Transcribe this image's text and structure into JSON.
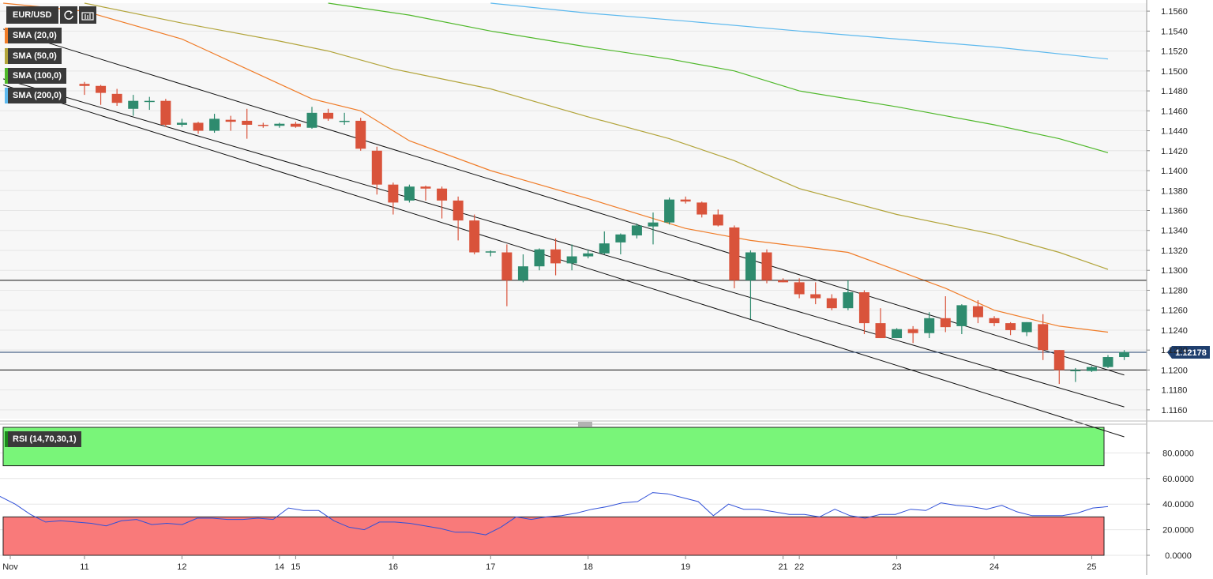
{
  "toolbar": {
    "pair": "EUR/USD",
    "refresh_icon": "refresh-icon",
    "bar_type_icon": "bar-chart-icon"
  },
  "indicators": [
    {
      "label": "SMA (20,0)",
      "color": "#f07c28"
    },
    {
      "label": "SMA (50,0)",
      "color": "#b2a43a"
    },
    {
      "label": "SMA (100,0)",
      "color": "#4fb82a"
    },
    {
      "label": "SMA (200,0)",
      "color": "#5db9ee"
    }
  ],
  "rsi_label": "RSI (14,70,30,1)",
  "current_price_label": "1.12178",
  "colors": {
    "up": "#2e8b6e",
    "down": "#d9533b",
    "overbought_zone": "#79f579",
    "oversold_zone": "#f97a7a",
    "rsi_line": "#3050d8",
    "channel": "#111111"
  },
  "chart_data": [
    {
      "type": "candlestick",
      "title": "EUR/USD",
      "y_axis": {
        "min": 1.1152,
        "max": 1.1568,
        "ticks": [
          "1.1160",
          "1.1180",
          "1.1200",
          "1.1220",
          "1.1240",
          "1.1260",
          "1.1280",
          "1.1300",
          "1.1320",
          "1.1340",
          "1.1360",
          "1.1380",
          "1.1400",
          "1.1420",
          "1.1440",
          "1.1460",
          "1.1480",
          "1.1500",
          "1.1520",
          "1.1540",
          "1.1560"
        ]
      },
      "x_axis": {
        "labels": [
          "Nov",
          "11",
          "12",
          "14",
          "15",
          "16",
          "17",
          "18",
          "19",
          "21",
          "22",
          "23",
          "24",
          "25"
        ],
        "label_bar_index": [
          -4,
          0,
          6,
          12,
          13,
          19,
          25,
          31,
          37,
          43,
          44,
          50,
          56,
          62
        ]
      },
      "x_range": [
        -5,
        64
      ],
      "candles": [
        {
          "o": 1.1487,
          "h": 1.1489,
          "l": 1.1476,
          "c": 1.1485
        },
        {
          "o": 1.1485,
          "h": 1.1486,
          "l": 1.1466,
          "c": 1.1478
        },
        {
          "o": 1.1477,
          "h": 1.1482,
          "l": 1.1465,
          "c": 1.1468
        },
        {
          "o": 1.1462,
          "h": 1.1476,
          "l": 1.1455,
          "c": 1.147
        },
        {
          "o": 1.147,
          "h": 1.1474,
          "l": 1.1461,
          "c": 1.147
        },
        {
          "o": 1.147,
          "h": 1.1472,
          "l": 1.1444,
          "c": 1.1446
        },
        {
          "o": 1.1446,
          "h": 1.1452,
          "l": 1.1444,
          "c": 1.1448
        },
        {
          "o": 1.1448,
          "h": 1.1449,
          "l": 1.1437,
          "c": 1.144
        },
        {
          "o": 1.144,
          "h": 1.1457,
          "l": 1.1438,
          "c": 1.1452
        },
        {
          "o": 1.1451,
          "h": 1.1455,
          "l": 1.144,
          "c": 1.1449
        },
        {
          "o": 1.145,
          "h": 1.1462,
          "l": 1.1432,
          "c": 1.1446
        },
        {
          "o": 1.1446,
          "h": 1.1448,
          "l": 1.1443,
          "c": 1.1445
        },
        {
          "o": 1.1445,
          "h": 1.1448,
          "l": 1.1443,
          "c": 1.1447
        },
        {
          "o": 1.1447,
          "h": 1.1449,
          "l": 1.1443,
          "c": 1.1444
        },
        {
          "o": 1.1443,
          "h": 1.1464,
          "l": 1.1442,
          "c": 1.1458
        },
        {
          "o": 1.1458,
          "h": 1.1462,
          "l": 1.145,
          "c": 1.1452
        },
        {
          "o": 1.145,
          "h": 1.1458,
          "l": 1.1446,
          "c": 1.145
        },
        {
          "o": 1.145,
          "h": 1.1453,
          "l": 1.142,
          "c": 1.1422
        },
        {
          "o": 1.142,
          "h": 1.1424,
          "l": 1.1376,
          "c": 1.1386
        },
        {
          "o": 1.1386,
          "h": 1.1388,
          "l": 1.1356,
          "c": 1.1368
        },
        {
          "o": 1.137,
          "h": 1.1386,
          "l": 1.1368,
          "c": 1.1384
        },
        {
          "o": 1.1384,
          "h": 1.1385,
          "l": 1.137,
          "c": 1.1382
        },
        {
          "o": 1.1382,
          "h": 1.1384,
          "l": 1.1352,
          "c": 1.137
        },
        {
          "o": 1.137,
          "h": 1.1374,
          "l": 1.133,
          "c": 1.135
        },
        {
          "o": 1.135,
          "h": 1.1356,
          "l": 1.1316,
          "c": 1.1318
        },
        {
          "o": 1.1318,
          "h": 1.132,
          "l": 1.1314,
          "c": 1.1319
        },
        {
          "o": 1.1318,
          "h": 1.1326,
          "l": 1.1264,
          "c": 1.129
        },
        {
          "o": 1.129,
          "h": 1.1316,
          "l": 1.1288,
          "c": 1.1304
        },
        {
          "o": 1.1304,
          "h": 1.1322,
          "l": 1.13,
          "c": 1.1321
        },
        {
          "o": 1.1321,
          "h": 1.1332,
          "l": 1.1295,
          "c": 1.1307
        },
        {
          "o": 1.1307,
          "h": 1.1326,
          "l": 1.13,
          "c": 1.1314
        },
        {
          "o": 1.1314,
          "h": 1.1321,
          "l": 1.1312,
          "c": 1.1317
        },
        {
          "o": 1.1317,
          "h": 1.1339,
          "l": 1.1316,
          "c": 1.1327
        },
        {
          "o": 1.1328,
          "h": 1.1337,
          "l": 1.1316,
          "c": 1.1336
        },
        {
          "o": 1.1335,
          "h": 1.1347,
          "l": 1.1332,
          "c": 1.1345
        },
        {
          "o": 1.1344,
          "h": 1.1358,
          "l": 1.1326,
          "c": 1.1348
        },
        {
          "o": 1.1348,
          "h": 1.1373,
          "l": 1.1346,
          "c": 1.1371
        },
        {
          "o": 1.1371,
          "h": 1.1374,
          "l": 1.1367,
          "c": 1.1369
        },
        {
          "o": 1.1368,
          "h": 1.1369,
          "l": 1.1353,
          "c": 1.1356
        },
        {
          "o": 1.1356,
          "h": 1.1361,
          "l": 1.1344,
          "c": 1.1345
        },
        {
          "o": 1.1343,
          "h": 1.1345,
          "l": 1.1282,
          "c": 1.129
        },
        {
          "o": 1.129,
          "h": 1.132,
          "l": 1.1251,
          "c": 1.1318
        },
        {
          "o": 1.1318,
          "h": 1.1321,
          "l": 1.1287,
          "c": 1.129
        },
        {
          "o": 1.129,
          "h": 1.1292,
          "l": 1.1288,
          "c": 1.1288
        },
        {
          "o": 1.1288,
          "h": 1.1292,
          "l": 1.1272,
          "c": 1.1276
        },
        {
          "o": 1.1276,
          "h": 1.1288,
          "l": 1.1266,
          "c": 1.1272
        },
        {
          "o": 1.1272,
          "h": 1.1276,
          "l": 1.126,
          "c": 1.1262
        },
        {
          "o": 1.1262,
          "h": 1.129,
          "l": 1.126,
          "c": 1.1278
        },
        {
          "o": 1.1278,
          "h": 1.128,
          "l": 1.1236,
          "c": 1.1247
        },
        {
          "o": 1.1247,
          "h": 1.1262,
          "l": 1.1232,
          "c": 1.1232
        },
        {
          "o": 1.1232,
          "h": 1.1242,
          "l": 1.1232,
          "c": 1.1241
        },
        {
          "o": 1.1241,
          "h": 1.1244,
          "l": 1.1227,
          "c": 1.1237
        },
        {
          "o": 1.1237,
          "h": 1.1258,
          "l": 1.1232,
          "c": 1.1252
        },
        {
          "o": 1.1252,
          "h": 1.1274,
          "l": 1.1238,
          "c": 1.1243
        },
        {
          "o": 1.1244,
          "h": 1.1266,
          "l": 1.1236,
          "c": 1.1265
        },
        {
          "o": 1.1264,
          "h": 1.127,
          "l": 1.1247,
          "c": 1.1253
        },
        {
          "o": 1.1252,
          "h": 1.1254,
          "l": 1.1244,
          "c": 1.1247
        },
        {
          "o": 1.1247,
          "h": 1.1248,
          "l": 1.1235,
          "c": 1.124
        },
        {
          "o": 1.1238,
          "h": 1.1248,
          "l": 1.1234,
          "c": 1.1248
        },
        {
          "o": 1.1246,
          "h": 1.1256,
          "l": 1.121,
          "c": 1.122
        },
        {
          "o": 1.122,
          "h": 1.122,
          "l": 1.1186,
          "c": 1.12
        },
        {
          "o": 1.1199,
          "h": 1.1202,
          "l": 1.1188,
          "c": 1.12
        },
        {
          "o": 1.1199,
          "h": 1.1204,
          "l": 1.1198,
          "c": 1.1203
        },
        {
          "o": 1.1203,
          "h": 1.1215,
          "l": 1.1202,
          "c": 1.1213
        },
        {
          "o": 1.1213,
          "h": 1.122,
          "l": 1.121,
          "c": 1.1218
        }
      ],
      "horizontal_lines": [
        1.129,
        1.12
      ],
      "current_price": 1.12178,
      "channel_lines": [
        {
          "x1": -5,
          "y1": 1.1542,
          "x2": 64,
          "y2": 1.1195
        },
        {
          "x1": -5,
          "y1": 1.1492,
          "x2": 64,
          "y2": 1.1163
        },
        {
          "x1": -5,
          "y1": 1.1486,
          "x2": 64,
          "y2": 1.1133
        }
      ],
      "sma": [
        {
          "name": "SMA (20,0)",
          "color": "#f07c28",
          "points": [
            [
              -5,
              1.1568
            ],
            [
              0,
              1.156
            ],
            [
              6,
              1.1532
            ],
            [
              10,
              1.1502
            ],
            [
              14,
              1.1472
            ],
            [
              17,
              1.146
            ],
            [
              20,
              1.143
            ],
            [
              25,
              1.14
            ],
            [
              31,
              1.1372
            ],
            [
              37,
              1.1342
            ],
            [
              41,
              1.133
            ],
            [
              44,
              1.1324
            ],
            [
              47,
              1.1318
            ],
            [
              50,
              1.13
            ],
            [
              53,
              1.1282
            ],
            [
              56,
              1.126
            ],
            [
              60,
              1.1244
            ],
            [
              63,
              1.1238
            ]
          ]
        },
        {
          "name": "SMA (50,0)",
          "color": "#b2a43a",
          "points": [
            [
              0,
              1.1568
            ],
            [
              6,
              1.1548
            ],
            [
              12,
              1.153
            ],
            [
              15,
              1.152
            ],
            [
              19,
              1.1502
            ],
            [
              25,
              1.1482
            ],
            [
              31,
              1.1454
            ],
            [
              36,
              1.1432
            ],
            [
              40,
              1.141
            ],
            [
              44,
              1.1382
            ],
            [
              50,
              1.1356
            ],
            [
              56,
              1.1336
            ],
            [
              60,
              1.1318
            ],
            [
              63,
              1.1301
            ]
          ]
        },
        {
          "name": "SMA (100,0)",
          "color": "#4fb82a",
          "points": [
            [
              15,
              1.1568
            ],
            [
              20,
              1.1556
            ],
            [
              25,
              1.154
            ],
            [
              31,
              1.1524
            ],
            [
              36,
              1.1512
            ],
            [
              40,
              1.15
            ],
            [
              44,
              1.148
            ],
            [
              50,
              1.1464
            ],
            [
              56,
              1.1446
            ],
            [
              60,
              1.1432
            ],
            [
              63,
              1.1418
            ]
          ]
        },
        {
          "name": "SMA (200,0)",
          "color": "#5db9ee",
          "points": [
            [
              25,
              1.1568
            ],
            [
              31,
              1.1558
            ],
            [
              37,
              1.155
            ],
            [
              44,
              1.154
            ],
            [
              50,
              1.1532
            ],
            [
              56,
              1.1524
            ],
            [
              63,
              1.1512
            ]
          ]
        }
      ]
    },
    {
      "type": "line",
      "title": "RSI (14,70,30,1)",
      "y_axis": {
        "min": 0,
        "max": 100,
        "ticks": [
          "0.0000",
          "20.0000",
          "40.0000",
          "60.0000",
          "80.0000"
        ]
      },
      "overbought": 70,
      "oversold": 30,
      "values": [
        46,
        40,
        32,
        26,
        27,
        26,
        25,
        23,
        27,
        28,
        24,
        25,
        24,
        29,
        29,
        28,
        28,
        29,
        28,
        37,
        35,
        35,
        27,
        22,
        20,
        26,
        26,
        25,
        23,
        21,
        18,
        18,
        16,
        22,
        30,
        28,
        30,
        31,
        33,
        36,
        38,
        41,
        42,
        49,
        48,
        45,
        42,
        31,
        40,
        36,
        36,
        34,
        32,
        32,
        30,
        36,
        31,
        29,
        32,
        32,
        36,
        35,
        41,
        39,
        38,
        36,
        39,
        34,
        31,
        31,
        31,
        33,
        37,
        38
      ]
    }
  ]
}
